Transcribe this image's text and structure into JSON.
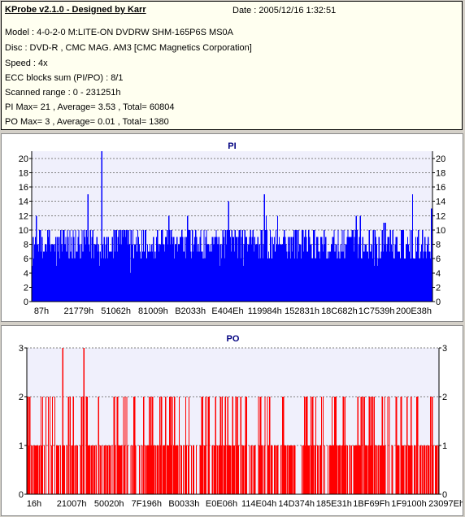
{
  "header": {
    "app_title": "KProbe v2.1.0 - Designed by Karr",
    "date": "Date : 2005/12/16 1:32:51"
  },
  "info_lines": [
    "Model : 4-0-2-0 M:LITE-ON DVDRW SHM-165P6S MS0A",
    "Disc : DVD-R , CMC MAG. AM3 [CMC Magnetics Corporation]",
    "Speed : 4x",
    "ECC blocks sum (PI/PO) : 8/1",
    "Scanned range : 0 - 231251h",
    "PI Max= 21 , Average= 3.53 , Total= 60804",
    "PO Max= 3 , Average= 0.01 , Total= 1380"
  ],
  "colors": {
    "pi_bar": "#0000ff",
    "po_bar": "#ff0000",
    "plot_bg": "#f0f0fc",
    "title_color": "#000080"
  },
  "chart_data": [
    {
      "type": "bar",
      "title": "PI",
      "ylim": [
        0,
        21
      ],
      "yticks": [
        0,
        2,
        4,
        6,
        8,
        10,
        12,
        14,
        16,
        18,
        20
      ],
      "xtick_labels": [
        "87h",
        "21779h",
        "51062h",
        "81009h",
        "B2033h",
        "E404Eh",
        "119984h",
        "152831h",
        "18C682h",
        "1C7539h",
        "200E38h"
      ],
      "x_range_hex": [
        "0",
        "231251h"
      ],
      "bins": 490,
      "typical_low": 6,
      "typical_high": 10,
      "max": 21,
      "average": 3.53,
      "spikes": [
        {
          "bin": 85,
          "value": 21
        },
        {
          "bin": 68,
          "value": 15
        },
        {
          "bin": 240,
          "value": 14
        },
        {
          "bin": 284,
          "value": 15
        },
        {
          "bin": 465,
          "value": 15
        },
        {
          "bin": 5,
          "value": 12
        },
        {
          "bin": 190,
          "value": 12
        },
        {
          "bin": 300,
          "value": 12
        },
        {
          "bin": 488,
          "value": 13
        },
        {
          "bin": 120,
          "value": 4
        },
        {
          "bin": 30,
          "value": 5
        }
      ],
      "grid": true
    },
    {
      "type": "bar",
      "title": "PO",
      "ylim": [
        0,
        3
      ],
      "yticks": [
        0,
        1,
        2,
        3
      ],
      "xtick_labels": [
        "16h",
        "21007h",
        "50020h",
        "7F196h",
        "B0033h",
        "E0E06h",
        "114E04h",
        "14D374h",
        "185E31h",
        "1BF69Fh",
        "1F9100h",
        "23097Eh"
      ],
      "x_range_hex": [
        "0",
        "231251h"
      ],
      "bins": 510,
      "max": 3,
      "average": 0.01,
      "spikes": [
        {
          "bin": 44,
          "value": 3
        },
        {
          "bin": 70,
          "value": 3
        }
      ],
      "grid": true
    }
  ]
}
